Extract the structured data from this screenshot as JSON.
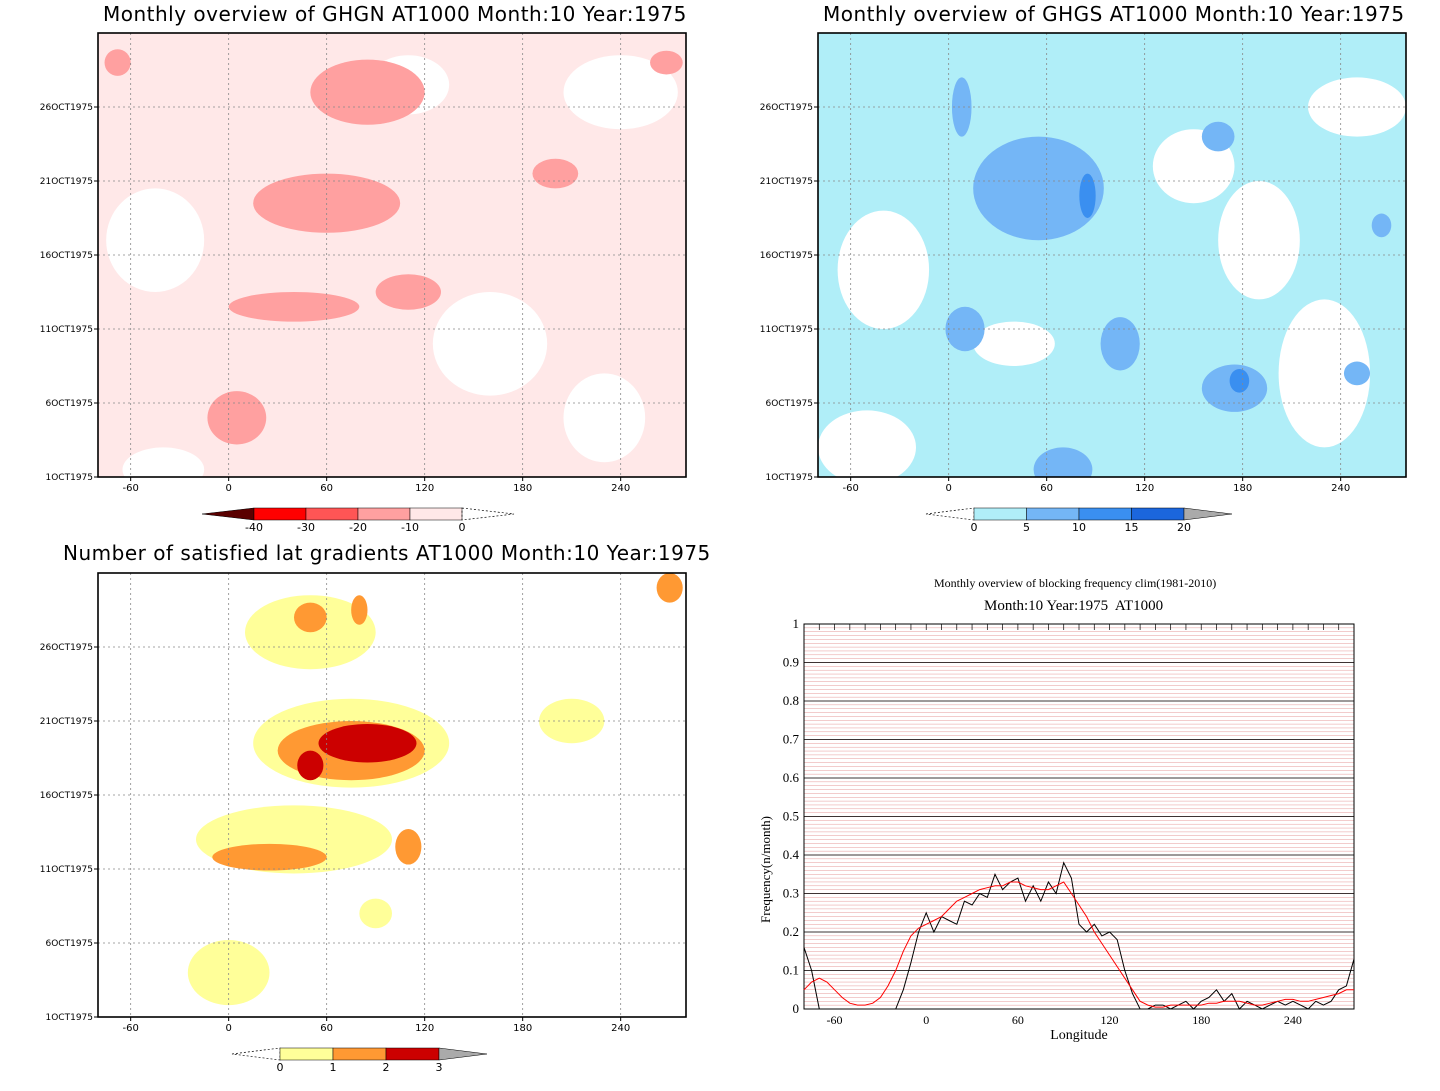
{
  "chart_data": [
    {
      "type": "heatmap",
      "title": "Monthly overview of GHGN AT1000 Month:10 Year:1975",
      "x_ticks": [
        -60,
        0,
        60,
        120,
        180,
        240
      ],
      "y_ticks": [
        "1OCT1975",
        "6OCT1975",
        "11OCT1975",
        "16OCT1975",
        "21OCT1975",
        "26OCT1975"
      ],
      "colorbar": {
        "labels": [
          "-40",
          "-30",
          "-20",
          "-10",
          "0"
        ],
        "colors": [
          "#5a0000",
          "#ff0000",
          "#ff5555",
          "#ffa0a0",
          "#ffe8e8"
        ]
      },
      "blobs": [
        {
          "lon": 85,
          "day": 27,
          "rx": 35,
          "ry": 2.2,
          "level": -15
        },
        {
          "lon": 60,
          "day": 19.5,
          "rx": 45,
          "ry": 2.0,
          "level": -15
        },
        {
          "lon": 40,
          "day": 12.5,
          "rx": 40,
          "ry": 1.0,
          "level": -12
        },
        {
          "lon": 110,
          "day": 13.5,
          "rx": 20,
          "ry": 1.2,
          "level": -12
        },
        {
          "lon": 5,
          "day": 5,
          "rx": 18,
          "ry": 1.8,
          "level": -12
        },
        {
          "lon": 200,
          "day": 21.5,
          "rx": 14,
          "ry": 1.0,
          "level": -12
        },
        {
          "lon": 268,
          "day": 29,
          "rx": 10,
          "ry": 0.8,
          "level": -12
        },
        {
          "lon": -68,
          "day": 29,
          "rx": 8,
          "ry": 0.9,
          "level": -12
        }
      ],
      "light_fill": {
        "level": -5
      },
      "white_patches": [
        {
          "lon": -45,
          "day": 17,
          "rx": 30,
          "ry": 3.5
        },
        {
          "lon": 160,
          "day": 10,
          "rx": 35,
          "ry": 3.5
        },
        {
          "lon": 240,
          "day": 27,
          "rx": 35,
          "ry": 2.5
        },
        {
          "lon": 230,
          "day": 5,
          "rx": 25,
          "ry": 3
        },
        {
          "lon": -40,
          "day": 1.5,
          "rx": 25,
          "ry": 1.5
        },
        {
          "lon": 110,
          "day": 27.5,
          "rx": 25,
          "ry": 2
        }
      ]
    },
    {
      "type": "heatmap",
      "title": "Monthly overview of GHGS AT1000 Month:10 Year:1975",
      "x_ticks": [
        -60,
        0,
        60,
        120,
        180,
        240
      ],
      "y_ticks": [
        "1OCT1975",
        "6OCT1975",
        "11OCT1975",
        "16OCT1975",
        "21OCT1975",
        "26OCT1975"
      ],
      "colorbar": {
        "labels": [
          "0",
          "5",
          "10",
          "15",
          "20"
        ],
        "colors": [
          "#b0eef8",
          "#74b6f6",
          "#3a8ff0",
          "#1b66dd",
          "#aaaaaa"
        ]
      },
      "base_fill": {
        "level": 2
      },
      "white_patches": [
        {
          "lon": -40,
          "day": 15,
          "rx": 28,
          "ry": 4
        },
        {
          "lon": 230,
          "day": 8,
          "rx": 28,
          "ry": 5
        },
        {
          "lon": 250,
          "day": 26,
          "rx": 30,
          "ry": 2
        },
        {
          "lon": 150,
          "day": 22,
          "rx": 25,
          "ry": 2.5
        },
        {
          "lon": 40,
          "day": 10,
          "rx": 25,
          "ry": 1.5
        },
        {
          "lon": -50,
          "day": 3,
          "rx": 30,
          "ry": 2.5
        },
        {
          "lon": 190,
          "day": 17,
          "rx": 25,
          "ry": 4
        }
      ],
      "blobs": [
        {
          "lon": 55,
          "day": 20.5,
          "rx": 40,
          "ry": 3.5,
          "level": 7
        },
        {
          "lon": 85,
          "day": 20,
          "rx": 5,
          "ry": 1.5,
          "level": 12
        },
        {
          "lon": 175,
          "day": 7,
          "rx": 20,
          "ry": 1.6,
          "level": 7
        },
        {
          "lon": 178,
          "day": 7.5,
          "rx": 6,
          "ry": 0.8,
          "level": 12
        },
        {
          "lon": 10,
          "day": 11,
          "rx": 12,
          "ry": 1.5,
          "level": 7
        },
        {
          "lon": 105,
          "day": 10,
          "rx": 12,
          "ry": 1.8,
          "level": 7
        },
        {
          "lon": 8,
          "day": 26,
          "rx": 6,
          "ry": 2,
          "level": 7
        },
        {
          "lon": 70,
          "day": 1.5,
          "rx": 18,
          "ry": 1.5,
          "level": 7
        },
        {
          "lon": 250,
          "day": 8,
          "rx": 8,
          "ry": 0.8,
          "level": 7
        },
        {
          "lon": 265,
          "day": 18,
          "rx": 6,
          "ry": 0.8,
          "level": 7
        },
        {
          "lon": 165,
          "day": 24,
          "rx": 10,
          "ry": 1,
          "level": 7
        }
      ]
    },
    {
      "type": "heatmap",
      "title": "Number of satisfied lat gradients AT1000 Month:10 Year:1975",
      "x_ticks": [
        -60,
        0,
        60,
        120,
        180,
        240
      ],
      "y_ticks": [
        "1OCT1975",
        "6OCT1975",
        "11OCT1975",
        "16OCT1975",
        "21OCT1975",
        "26OCT1975"
      ],
      "colorbar": {
        "labels": [
          "0",
          "1",
          "2",
          "3"
        ],
        "colors": [
          "#ffff99",
          "#ff9933",
          "#cc0000",
          "#aaaaaa"
        ]
      },
      "blobs": [
        {
          "lon": 75,
          "day": 19.5,
          "rx": 60,
          "ry": 3,
          "level": 0.5
        },
        {
          "lon": 75,
          "day": 19,
          "rx": 45,
          "ry": 2,
          "level": 1.5
        },
        {
          "lon": 85,
          "day": 19.5,
          "rx": 30,
          "ry": 1.3,
          "level": 2.5
        },
        {
          "lon": 50,
          "day": 18,
          "rx": 8,
          "ry": 1,
          "level": 2.5
        },
        {
          "lon": 50,
          "day": 27,
          "rx": 40,
          "ry": 2.5,
          "level": 0.5
        },
        {
          "lon": 50,
          "day": 28,
          "rx": 10,
          "ry": 1,
          "level": 1.5
        },
        {
          "lon": 80,
          "day": 28.5,
          "rx": 5,
          "ry": 1,
          "level": 1.5
        },
        {
          "lon": 40,
          "day": 13,
          "rx": 60,
          "ry": 2.3,
          "level": 0.5
        },
        {
          "lon": 25,
          "day": 11.8,
          "rx": 35,
          "ry": 0.9,
          "level": 1.5
        },
        {
          "lon": 110,
          "day": 12.5,
          "rx": 8,
          "ry": 1.2,
          "level": 1.5
        },
        {
          "lon": 0,
          "day": 4,
          "rx": 25,
          "ry": 2.2,
          "level": 0.5
        },
        {
          "lon": 210,
          "day": 21,
          "rx": 20,
          "ry": 1.5,
          "level": 0.5
        },
        {
          "lon": 90,
          "day": 8,
          "rx": 10,
          "ry": 1,
          "level": 0.5
        },
        {
          "lon": 270,
          "day": 30,
          "rx": 8,
          "ry": 1,
          "level": 1.5
        }
      ]
    },
    {
      "type": "line",
      "title": "Monthly overview of blocking frequency clim(1981-2010)",
      "subtitle": "Month:10 Year:1975  AT1000",
      "xlabel": "Longitude",
      "ylabel": "Frequency(n/month)",
      "xlim": [
        -80,
        280
      ],
      "ylim": [
        0,
        1
      ],
      "x_ticks": [
        -60,
        0,
        60,
        120,
        180,
        240
      ],
      "y_ticks": [
        "0",
        "0.1",
        "0.2",
        "0.3",
        "0.4",
        "0.5",
        "0.6",
        "0.7",
        "0.8",
        "0.9",
        "1"
      ],
      "series": [
        {
          "color": "#000000",
          "x": [
            -80,
            -75,
            -70,
            -65,
            -60,
            -55,
            -50,
            -45,
            -40,
            -35,
            -30,
            -25,
            -20,
            -15,
            -10,
            -5,
            0,
            5,
            10,
            15,
            20,
            25,
            30,
            35,
            40,
            45,
            50,
            55,
            60,
            65,
            70,
            75,
            80,
            85,
            90,
            95,
            100,
            105,
            110,
            115,
            120,
            125,
            130,
            135,
            140,
            145,
            150,
            155,
            160,
            165,
            170,
            175,
            180,
            185,
            190,
            195,
            200,
            205,
            210,
            215,
            220,
            225,
            230,
            235,
            240,
            245,
            250,
            255,
            260,
            265,
            270,
            275,
            280
          ],
          "y": [
            0.16,
            0.1,
            0.0,
            0.0,
            0.0,
            0.0,
            0.0,
            0.0,
            0.0,
            0.0,
            0.0,
            0.0,
            0.0,
            0.05,
            0.12,
            0.2,
            0.25,
            0.2,
            0.24,
            0.23,
            0.22,
            0.28,
            0.27,
            0.3,
            0.29,
            0.35,
            0.31,
            0.33,
            0.34,
            0.28,
            0.32,
            0.28,
            0.33,
            0.3,
            0.38,
            0.34,
            0.22,
            0.2,
            0.22,
            0.19,
            0.2,
            0.18,
            0.1,
            0.04,
            0.0,
            0.0,
            0.01,
            0.01,
            0.0,
            0.01,
            0.02,
            0.0,
            0.02,
            0.03,
            0.05,
            0.02,
            0.04,
            0.0,
            0.02,
            0.01,
            0.0,
            0.01,
            0.02,
            0.01,
            0.02,
            0.01,
            0.0,
            0.02,
            0.01,
            0.02,
            0.05,
            0.06,
            0.13
          ]
        },
        {
          "color": "#ff0000",
          "x": [
            -80,
            -75,
            -70,
            -65,
            -60,
            -55,
            -50,
            -45,
            -40,
            -35,
            -30,
            -25,
            -20,
            -15,
            -10,
            -5,
            0,
            5,
            10,
            15,
            20,
            25,
            30,
            35,
            40,
            45,
            50,
            55,
            60,
            65,
            70,
            75,
            80,
            85,
            90,
            95,
            100,
            105,
            110,
            115,
            120,
            125,
            130,
            135,
            140,
            145,
            150,
            155,
            160,
            165,
            170,
            175,
            180,
            185,
            190,
            195,
            200,
            205,
            210,
            215,
            220,
            225,
            230,
            235,
            240,
            245,
            250,
            255,
            260,
            265,
            270,
            275,
            280
          ],
          "y": [
            0.05,
            0.07,
            0.08,
            0.07,
            0.05,
            0.03,
            0.015,
            0.01,
            0.01,
            0.015,
            0.03,
            0.06,
            0.1,
            0.15,
            0.19,
            0.21,
            0.22,
            0.23,
            0.24,
            0.26,
            0.28,
            0.29,
            0.3,
            0.31,
            0.315,
            0.32,
            0.32,
            0.33,
            0.33,
            0.32,
            0.315,
            0.31,
            0.31,
            0.32,
            0.33,
            0.3,
            0.27,
            0.24,
            0.2,
            0.17,
            0.14,
            0.11,
            0.08,
            0.05,
            0.02,
            0.01,
            0.005,
            0.005,
            0.01,
            0.01,
            0.01,
            0.01,
            0.01,
            0.015,
            0.015,
            0.02,
            0.02,
            0.02,
            0.015,
            0.01,
            0.01,
            0.015,
            0.02,
            0.025,
            0.025,
            0.02,
            0.02,
            0.025,
            0.03,
            0.035,
            0.04,
            0.05,
            0.05
          ]
        }
      ]
    }
  ]
}
